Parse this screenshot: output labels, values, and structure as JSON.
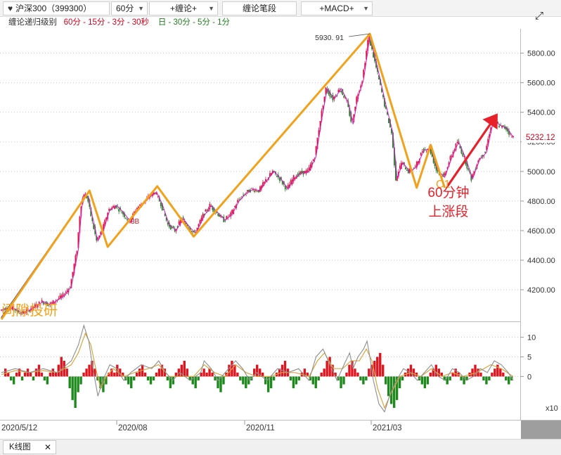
{
  "toolbar": {
    "symbol": "沪深300（399300）",
    "period": "60分",
    "btn_chanlun": "+缠论+",
    "btn_bi": "缠论笔段",
    "btn_macd": "+MACD+",
    "expand_icon": "expand-icon"
  },
  "level_bar": {
    "label": "缠论递归级别",
    "red_levels": "60分 - 15分 - 3分 - 30秒",
    "green_levels": "日 - 30分 - 5分 - 1分"
  },
  "chart_data": [
    {
      "type": "line",
      "name": "price-chart",
      "y_ticks": [
        "4200.00",
        "4400.00",
        "4600.00",
        "4800.00",
        "5000.00",
        "5200.00",
        "5400.00",
        "5600.00",
        "5800.00"
      ],
      "ylim": [
        4010,
        5950
      ],
      "x_ticks": [
        "2020/5/12",
        "2020/08",
        "2020/11",
        "2021/03"
      ],
      "last_price": "5232.12",
      "peak_label": "5930. 91",
      "peak_value": 5930.91,
      "price_path": [
        [
          0,
          4060
        ],
        [
          10,
          4080
        ],
        [
          20,
          4070
        ],
        [
          30,
          4040
        ],
        [
          40,
          4060
        ],
        [
          50,
          4090
        ],
        [
          60,
          4120
        ],
        [
          70,
          4100
        ],
        [
          80,
          4130
        ],
        [
          90,
          4160
        ],
        [
          100,
          4220
        ],
        [
          110,
          4470
        ],
        [
          115,
          4760
        ],
        [
          120,
          4850
        ],
        [
          125,
          4820
        ],
        [
          130,
          4700
        ],
        [
          138,
          4530
        ],
        [
          146,
          4600
        ],
        [
          155,
          4740
        ],
        [
          165,
          4770
        ],
        [
          175,
          4720
        ],
        [
          185,
          4660
        ],
        [
          195,
          4750
        ],
        [
          205,
          4790
        ],
        [
          215,
          4840
        ],
        [
          222,
          4860
        ],
        [
          230,
          4780
        ],
        [
          240,
          4640
        ],
        [
          250,
          4600
        ],
        [
          260,
          4680
        ],
        [
          270,
          4620
        ],
        [
          278,
          4580
        ],
        [
          290,
          4700
        ],
        [
          300,
          4770
        ],
        [
          310,
          4720
        ],
        [
          320,
          4670
        ],
        [
          330,
          4710
        ],
        [
          340,
          4800
        ],
        [
          350,
          4850
        ],
        [
          360,
          4880
        ],
        [
          370,
          4870
        ],
        [
          380,
          4940
        ],
        [
          390,
          5000
        ],
        [
          400,
          4950
        ],
        [
          410,
          4880
        ],
        [
          420,
          4960
        ],
        [
          430,
          4990
        ],
        [
          440,
          5000
        ],
        [
          450,
          5100
        ],
        [
          458,
          5350
        ],
        [
          466,
          5560
        ],
        [
          476,
          5490
        ],
        [
          486,
          5560
        ],
        [
          496,
          5470
        ],
        [
          503,
          5320
        ],
        [
          510,
          5500
        ],
        [
          518,
          5620
        ],
        [
          523,
          5780
        ],
        [
          527,
          5920
        ],
        [
          532,
          5820
        ],
        [
          540,
          5660
        ],
        [
          550,
          5450
        ],
        [
          560,
          5260
        ],
        [
          566,
          4950
        ],
        [
          574,
          5060
        ],
        [
          584,
          5000
        ],
        [
          594,
          5030
        ],
        [
          604,
          5140
        ],
        [
          614,
          5160
        ],
        [
          624,
          5010
        ],
        [
          634,
          4960
        ],
        [
          644,
          5090
        ],
        [
          654,
          5200
        ],
        [
          664,
          5090
        ],
        [
          674,
          4950
        ],
        [
          684,
          5080
        ],
        [
          694,
          5130
        ],
        [
          704,
          5350
        ],
        [
          714,
          5310
        ],
        [
          724,
          5290
        ],
        [
          732,
          5232
        ]
      ],
      "zigzag_orange": [
        [
          0,
          4000
        ],
        [
          126,
          4870
        ],
        [
          152,
          4490
        ],
        [
          223,
          4900
        ],
        [
          275,
          4560
        ],
        [
          527,
          5930
        ],
        [
          594,
          4890
        ],
        [
          614,
          5180
        ],
        [
          634,
          4890
        ]
      ],
      "zigzag_navy": [
        [
          0,
          4010
        ],
        [
          126,
          4870
        ]
      ],
      "red_arrow": [
        [
          638,
          4900
        ],
        [
          708,
          5380
        ]
      ],
      "annotations": {
        "label_3B": "3B",
        "label_C1": "C1",
        "label_up": "60分钟\n上涨段",
        "watermark": "间隙投研"
      }
    },
    {
      "type": "bar",
      "name": "macd",
      "y_ticks": [
        "10",
        "5",
        "0"
      ],
      "ylim": [
        -10.5,
        13.5
      ],
      "multiplier_label": "x10",
      "dif_series": [
        [
          0,
          1
        ],
        [
          20,
          2
        ],
        [
          40,
          1
        ],
        [
          60,
          2
        ],
        [
          80,
          1
        ],
        [
          100,
          4
        ],
        [
          110,
          8
        ],
        [
          118,
          13
        ],
        [
          125,
          9
        ],
        [
          130,
          3
        ],
        [
          138,
          -5
        ],
        [
          145,
          -1
        ],
        [
          155,
          3
        ],
        [
          165,
          2
        ],
        [
          175,
          -1
        ],
        [
          185,
          1
        ],
        [
          200,
          3
        ],
        [
          215,
          2
        ],
        [
          225,
          4
        ],
        [
          235,
          1
        ],
        [
          245,
          -1
        ],
        [
          255,
          1
        ],
        [
          270,
          -1
        ],
        [
          285,
          1
        ],
        [
          290,
          4
        ],
        [
          300,
          2
        ],
        [
          310,
          -1
        ],
        [
          320,
          1
        ],
        [
          335,
          4
        ],
        [
          345,
          2
        ],
        [
          355,
          -1
        ],
        [
          365,
          1
        ],
        [
          380,
          -1
        ],
        [
          395,
          2
        ],
        [
          410,
          1
        ],
        [
          425,
          2
        ],
        [
          440,
          -1
        ],
        [
          450,
          5
        ],
        [
          460,
          7
        ],
        [
          470,
          3
        ],
        [
          480,
          -1
        ],
        [
          490,
          3
        ],
        [
          498,
          6
        ],
        [
          503,
          2
        ],
        [
          510,
          5
        ],
        [
          518,
          7
        ],
        [
          523,
          9
        ],
        [
          527,
          5
        ],
        [
          532,
          -1
        ],
        [
          540,
          -7
        ],
        [
          548,
          -9
        ],
        [
          555,
          -5
        ],
        [
          565,
          -1
        ],
        [
          575,
          2
        ],
        [
          585,
          1
        ],
        [
          595,
          -1
        ],
        [
          605,
          1
        ],
        [
          615,
          3
        ],
        [
          625,
          0
        ],
        [
          635,
          -1
        ],
        [
          645,
          2
        ],
        [
          655,
          1
        ],
        [
          665,
          -1
        ],
        [
          675,
          0
        ],
        [
          685,
          2
        ],
        [
          695,
          1
        ],
        [
          705,
          4
        ],
        [
          715,
          3
        ],
        [
          725,
          1
        ],
        [
          732,
          -1
        ]
      ],
      "dea_series": [
        [
          0,
          0.5
        ],
        [
          20,
          1.5
        ],
        [
          40,
          1
        ],
        [
          60,
          1.5
        ],
        [
          80,
          1
        ],
        [
          100,
          3
        ],
        [
          110,
          6
        ],
        [
          120,
          11
        ],
        [
          128,
          8
        ],
        [
          135,
          2
        ],
        [
          142,
          -3
        ],
        [
          150,
          0
        ],
        [
          160,
          2
        ],
        [
          175,
          0
        ],
        [
          190,
          1
        ],
        [
          210,
          2
        ],
        [
          225,
          3
        ],
        [
          240,
          0
        ],
        [
          255,
          0
        ],
        [
          275,
          0
        ],
        [
          290,
          3
        ],
        [
          305,
          1
        ],
        [
          320,
          0
        ],
        [
          335,
          3
        ],
        [
          350,
          1
        ],
        [
          365,
          0
        ],
        [
          385,
          0
        ],
        [
          400,
          1
        ],
        [
          420,
          1
        ],
        [
          440,
          0
        ],
        [
          452,
          4
        ],
        [
          462,
          6
        ],
        [
          475,
          2
        ],
        [
          488,
          2
        ],
        [
          500,
          4
        ],
        [
          512,
          4
        ],
        [
          522,
          7
        ],
        [
          530,
          4
        ],
        [
          538,
          -3
        ],
        [
          548,
          -8
        ],
        [
          558,
          -4
        ],
        [
          570,
          0
        ],
        [
          585,
          1
        ],
        [
          600,
          0
        ],
        [
          615,
          2
        ],
        [
          630,
          0
        ],
        [
          645,
          1
        ],
        [
          660,
          0
        ],
        [
          680,
          1
        ],
        [
          700,
          3
        ],
        [
          715,
          2
        ],
        [
          732,
          0
        ]
      ],
      "histogram": [
        2,
        1,
        -1,
        -2,
        1,
        2,
        -1,
        1,
        2,
        1,
        -1,
        2,
        3,
        1,
        -1,
        -2,
        1,
        2,
        1,
        3,
        5,
        4,
        2,
        -3,
        -6,
        -8,
        -4,
        -2,
        1,
        2,
        3,
        4,
        2,
        -1,
        -3,
        -4,
        -2,
        1,
        2,
        1,
        3,
        2,
        1,
        -1,
        -2,
        -3,
        -1,
        1,
        2,
        3,
        1,
        -1,
        -2,
        -1,
        1,
        2,
        3,
        2,
        -1,
        -3,
        -2,
        1,
        2,
        3,
        4,
        2,
        -1,
        -2,
        -3,
        -1,
        1,
        2,
        1,
        2,
        1,
        -1,
        -3,
        -4,
        -2,
        1,
        3,
        4,
        3,
        1,
        -1,
        -2,
        -3,
        -2,
        -1,
        2,
        3,
        2,
        1,
        -2,
        -4,
        -3,
        -1,
        1,
        2,
        3,
        4,
        2,
        -1,
        -3,
        -2,
        -1,
        1,
        2,
        1,
        -1,
        -2,
        -3,
        -1,
        1,
        2,
        4,
        5,
        3,
        1,
        -1,
        -3,
        -2,
        1,
        3,
        4,
        2,
        1,
        -1,
        -2,
        -1,
        2,
        3,
        4,
        5,
        6,
        3,
        -2,
        -5,
        -7,
        -8,
        -6,
        -3,
        -1,
        1,
        2,
        3,
        2,
        1,
        -1,
        -2,
        -3,
        -2,
        1,
        2,
        3,
        2,
        1,
        -1,
        -2,
        -1,
        1,
        2,
        1,
        -1,
        -2,
        -1,
        1,
        2,
        3,
        2,
        1,
        -1,
        -2,
        -1,
        1,
        2,
        3,
        2,
        1,
        -1,
        -2,
        -1
      ]
    }
  ],
  "bottom_tab": {
    "label": "K线图",
    "close": "✕"
  }
}
